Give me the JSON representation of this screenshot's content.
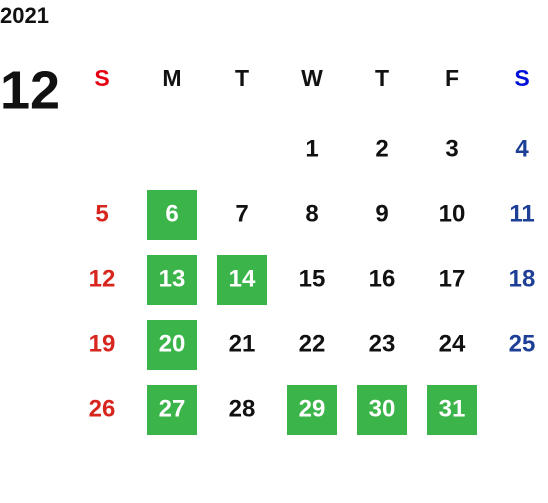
{
  "year": "2021",
  "month": "12",
  "weekdays": [
    "S",
    "M",
    "T",
    "W",
    "T",
    "F",
    "S"
  ],
  "highlight_color": "#3bb44a",
  "weeks": [
    [
      null,
      null,
      null,
      {
        "day": 1,
        "highlighted": false
      },
      {
        "day": 2,
        "highlighted": false
      },
      {
        "day": 3,
        "highlighted": false
      },
      {
        "day": 4,
        "highlighted": false
      }
    ],
    [
      {
        "day": 5,
        "highlighted": false
      },
      {
        "day": 6,
        "highlighted": true
      },
      {
        "day": 7,
        "highlighted": false
      },
      {
        "day": 8,
        "highlighted": false
      },
      {
        "day": 9,
        "highlighted": false
      },
      {
        "day": 10,
        "highlighted": false
      },
      {
        "day": 11,
        "highlighted": false
      }
    ],
    [
      {
        "day": 12,
        "highlighted": false
      },
      {
        "day": 13,
        "highlighted": true
      },
      {
        "day": 14,
        "highlighted": true
      },
      {
        "day": 15,
        "highlighted": false
      },
      {
        "day": 16,
        "highlighted": false
      },
      {
        "day": 17,
        "highlighted": false
      },
      {
        "day": 18,
        "highlighted": false
      }
    ],
    [
      {
        "day": 19,
        "highlighted": false
      },
      {
        "day": 20,
        "highlighted": true
      },
      {
        "day": 21,
        "highlighted": false
      },
      {
        "day": 22,
        "highlighted": false
      },
      {
        "day": 23,
        "highlighted": false
      },
      {
        "day": 24,
        "highlighted": false
      },
      {
        "day": 25,
        "highlighted": false
      }
    ],
    [
      {
        "day": 26,
        "highlighted": false
      },
      {
        "day": 27,
        "highlighted": true
      },
      {
        "day": 28,
        "highlighted": false
      },
      {
        "day": 29,
        "highlighted": true
      },
      {
        "day": 30,
        "highlighted": true
      },
      {
        "day": 31,
        "highlighted": true
      },
      null
    ]
  ]
}
